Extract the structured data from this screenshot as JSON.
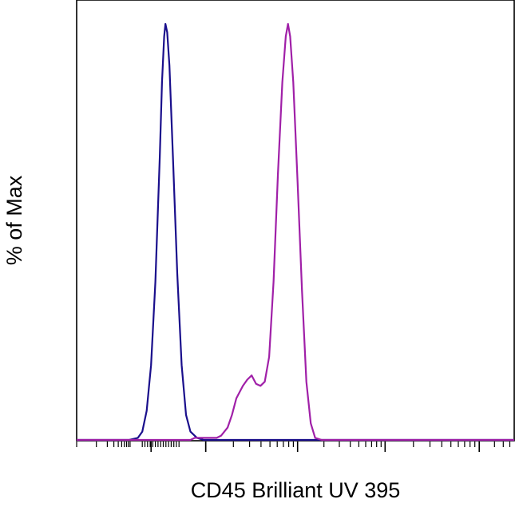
{
  "chart_data": {
    "type": "line",
    "title": "",
    "xlabel": "CD45 Brilliant UV 395",
    "ylabel": "% of Max",
    "xscale": "log (biexponential), no tick labels",
    "ylim": [
      0,
      100
    ],
    "grid": false,
    "legend": "none",
    "series": [
      {
        "name": "",
        "color": "#1a0f8c",
        "points": [
          [
            0.0,
            0
          ],
          [
            0.12,
            0
          ],
          [
            0.14,
            0.5
          ],
          [
            0.15,
            2
          ],
          [
            0.16,
            7
          ],
          [
            0.17,
            18
          ],
          [
            0.18,
            38
          ],
          [
            0.19,
            68
          ],
          [
            0.195,
            86
          ],
          [
            0.2,
            97
          ],
          [
            0.203,
            100
          ],
          [
            0.207,
            98
          ],
          [
            0.212,
            90
          ],
          [
            0.22,
            68
          ],
          [
            0.23,
            40
          ],
          [
            0.24,
            18
          ],
          [
            0.25,
            6
          ],
          [
            0.26,
            2
          ],
          [
            0.275,
            0.5
          ],
          [
            0.29,
            0
          ],
          [
            1.0,
            0
          ]
        ]
      },
      {
        "name": "",
        "color": "#a020a8",
        "points": [
          [
            0.0,
            0
          ],
          [
            0.26,
            0
          ],
          [
            0.27,
            0.5
          ],
          [
            0.32,
            0.5
          ],
          [
            0.33,
            1
          ],
          [
            0.345,
            3
          ],
          [
            0.355,
            6
          ],
          [
            0.365,
            10
          ],
          [
            0.38,
            13
          ],
          [
            0.39,
            14.5
          ],
          [
            0.4,
            15.5
          ],
          [
            0.41,
            13.5
          ],
          [
            0.42,
            13
          ],
          [
            0.43,
            14
          ],
          [
            0.44,
            20
          ],
          [
            0.45,
            38
          ],
          [
            0.46,
            64
          ],
          [
            0.47,
            86
          ],
          [
            0.478,
            97
          ],
          [
            0.483,
            100
          ],
          [
            0.488,
            97
          ],
          [
            0.495,
            86
          ],
          [
            0.505,
            62
          ],
          [
            0.515,
            36
          ],
          [
            0.525,
            14
          ],
          [
            0.535,
            4
          ],
          [
            0.545,
            0.5
          ],
          [
            0.56,
            0
          ],
          [
            1.0,
            0
          ]
        ]
      }
    ]
  }
}
